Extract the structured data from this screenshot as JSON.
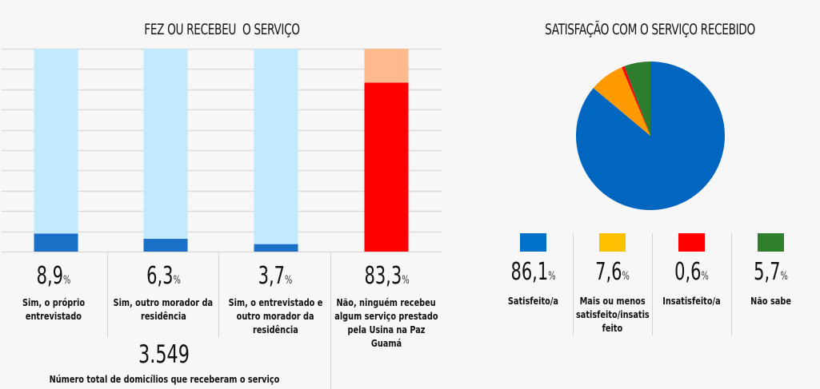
{
  "chart_data": [
    {
      "type": "bar",
      "stacked": true,
      "title": "FEZ OU RECEBEU  O SERVIÇO",
      "xlabel": "",
      "ylabel": "",
      "ylim": [
        0,
        100
      ],
      "grid": true,
      "categories": [
        "Sim, o próprio entrevistado",
        "Sim, outro morador da residência",
        "Sim, o entrevistado e outro morador da residência",
        "Não, ninguém recebeu algum serviço prestado pela Usina na Paz Guamá"
      ],
      "series": [
        {
          "name": "value",
          "values": [
            8.9,
            6.3,
            3.7,
            83.3
          ],
          "colors": [
            "#1a6fc6",
            "#1a6fc6",
            "#1a6fc6",
            "#ff0000"
          ]
        },
        {
          "name": "remainder",
          "values": [
            91.1,
            93.7,
            96.3,
            16.7
          ],
          "colors": [
            "#c2e9fd",
            "#c2e9fd",
            "#c2e9fd",
            "#feb98c"
          ]
        }
      ],
      "data_labels": [
        "8,9",
        "6,3",
        "3,7",
        "83,3"
      ],
      "label_lines": [
        [
          "Sim, o próprio",
          "entrevistado"
        ],
        [
          "Sim, outro morador da",
          "residência"
        ],
        [
          "Sim, o entrevistado e",
          "outro morador da",
          "residência"
        ],
        [
          "Não, ninguém recebeu",
          "algum serviço prestado",
          "pela Usina na Paz Guamá"
        ]
      ],
      "percent_symbol": "%",
      "total": {
        "value": "3.549",
        "label": "Número total de domicílios que receberam o serviço"
      }
    },
    {
      "type": "pie",
      "title": "SATISFAÇÃO COM O SERVIÇO RECEBIDO",
      "start": "12 o'clock, clockwise",
      "slices": [
        {
          "label": "Satisfeito/a",
          "value": 86.1,
          "display": "86,1",
          "color": "#0066bf",
          "legend_color": "#0070c8"
        },
        {
          "label": "Mais ou menos satisfeito/insatisfeito",
          "value": 7.6,
          "display": "7,6",
          "color": "#ff9a00",
          "legend_color": "#ffc000"
        },
        {
          "label": "Insatisfeito/a",
          "value": 0.6,
          "display": "0,6",
          "color": "#ff0000",
          "legend_color": "#ff0000"
        },
        {
          "label": "Não sabe",
          "value": 5.7,
          "display": "5,7",
          "color": "#2e7d2e",
          "legend_color": "#2f7f2c"
        }
      ],
      "legend_lines": [
        [
          "Satisfeito/a"
        ],
        [
          "Mais ou menos",
          "satisfeito/insatis",
          "feito"
        ],
        [
          "Insatisfeito/a"
        ],
        [
          "Não sabe"
        ]
      ],
      "percent_symbol": "%",
      "legend": "bottom"
    }
  ]
}
